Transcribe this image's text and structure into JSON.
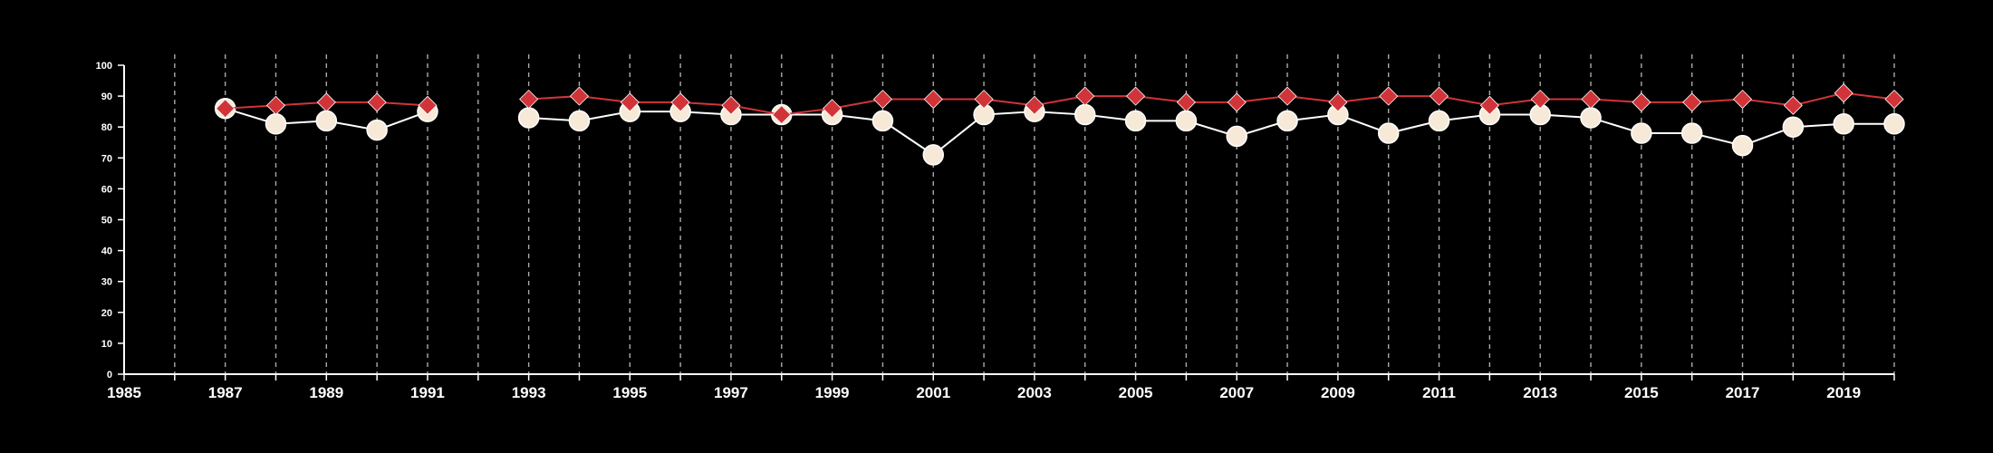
{
  "chart_data": {
    "type": "line",
    "title": "",
    "xlabel": "",
    "ylabel": "",
    "xlim": [
      1985,
      2020
    ],
    "ylim": [
      0,
      100
    ],
    "x_ticks": [
      1985,
      1987,
      1989,
      1991,
      1993,
      1995,
      1997,
      1999,
      2001,
      2003,
      2005,
      2007,
      2009,
      2011,
      2013,
      2015,
      2017,
      2019
    ],
    "y_ticks": [
      0,
      10,
      20,
      30,
      40,
      50,
      60,
      70,
      80,
      90,
      100
    ],
    "vertical_dashed_gridlines_at": [
      1986,
      1987,
      1988,
      1989,
      1990,
      1991,
      1992,
      1993,
      1994,
      1995,
      1996,
      1997,
      1998,
      1999,
      2000,
      2001,
      2002,
      2003,
      2004,
      2005,
      2006,
      2007,
      2008,
      2009,
      2010,
      2011,
      2012,
      2013,
      2014,
      2015,
      2016,
      2017,
      2018,
      2019,
      2020
    ],
    "background": "#000000",
    "series": [
      {
        "marker": "circle",
        "color": "#f7e9d7",
        "line_color": "#ffffff",
        "segments": [
          [
            [
              1987,
              86
            ],
            [
              1988,
              81
            ],
            [
              1989,
              82
            ],
            [
              1990,
              79
            ],
            [
              1991,
              85
            ]
          ],
          [
            [
              1993,
              83
            ],
            [
              1994,
              82
            ],
            [
              1995,
              85
            ],
            [
              1996,
              85
            ],
            [
              1997,
              84
            ],
            [
              1998,
              84
            ],
            [
              1999,
              84
            ],
            [
              2000,
              82
            ],
            [
              2001,
              71
            ],
            [
              2002,
              84
            ],
            [
              2003,
              85
            ],
            [
              2004,
              84
            ],
            [
              2005,
              82
            ],
            [
              2006,
              82
            ],
            [
              2007,
              77
            ],
            [
              2008,
              82
            ],
            [
              2009,
              84
            ],
            [
              2010,
              78
            ],
            [
              2011,
              82
            ],
            [
              2012,
              84
            ],
            [
              2013,
              84
            ],
            [
              2014,
              83
            ],
            [
              2015,
              78
            ],
            [
              2016,
              78
            ],
            [
              2017,
              74
            ],
            [
              2018,
              80
            ],
            [
              2019,
              81
            ],
            [
              2020,
              81
            ]
          ]
        ]
      },
      {
        "marker": "diamond",
        "color": "#d13438",
        "line_color": "#d13438",
        "segments": [
          [
            [
              1987,
              86
            ],
            [
              1988,
              87
            ],
            [
              1989,
              88
            ],
            [
              1990,
              88
            ],
            [
              1991,
              87
            ]
          ],
          [
            [
              1993,
              89
            ],
            [
              1994,
              90
            ],
            [
              1995,
              88
            ],
            [
              1996,
              88
            ],
            [
              1997,
              87
            ],
            [
              1998,
              84
            ],
            [
              1999,
              86
            ],
            [
              2000,
              89
            ],
            [
              2001,
              89
            ],
            [
              2002,
              89
            ],
            [
              2003,
              87
            ],
            [
              2004,
              90
            ],
            [
              2005,
              90
            ],
            [
              2006,
              88
            ],
            [
              2007,
              88
            ],
            [
              2008,
              90
            ],
            [
              2009,
              88
            ],
            [
              2010,
              90
            ],
            [
              2011,
              90
            ],
            [
              2012,
              87
            ],
            [
              2013,
              89
            ],
            [
              2014,
              89
            ],
            [
              2015,
              88
            ],
            [
              2016,
              88
            ],
            [
              2017,
              89
            ],
            [
              2018,
              87
            ],
            [
              2019,
              91
            ],
            [
              2020,
              89
            ]
          ]
        ]
      }
    ]
  }
}
